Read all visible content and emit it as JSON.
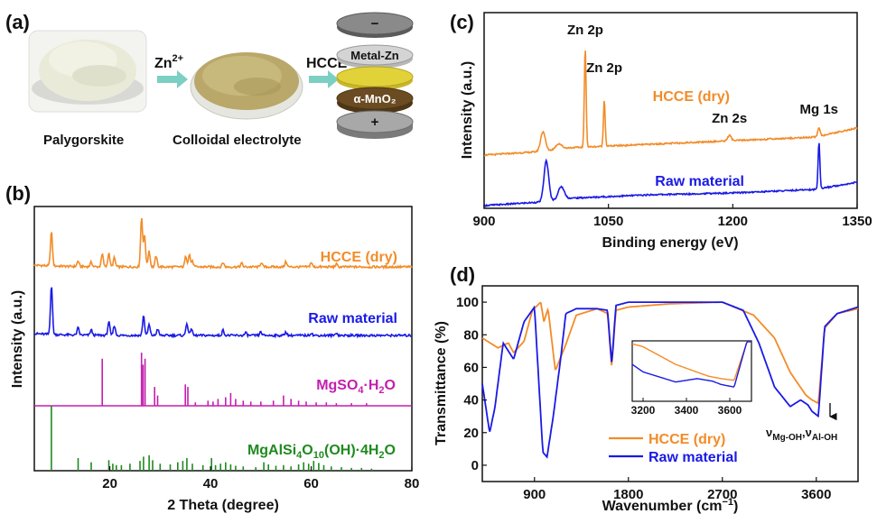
{
  "panel_a": {
    "label": "(a)",
    "reagent_1": "Zn",
    "reagent_1_sup": "2+",
    "reagent_2": "HCCE",
    "caption_left": "Palygorskite",
    "caption_right": "Colloidal electrolyte",
    "cell_layers": [
      "−",
      "Metal-Zn",
      "",
      "α-MnO₂",
      "+"
    ],
    "colors": {
      "powder": "#e9ead8",
      "gel": "#b9a86a",
      "separator": "#e2d23a",
      "cathode": "#6b4c22",
      "can": "#9a9a9a",
      "arrow": "#7ccfc3"
    }
  },
  "chart_data": [
    {
      "panel": "(b)",
      "type": "line",
      "xlabel": "2 Theta (degree)",
      "ylabel": "Intensity (a.u.)",
      "xlim": [
        5,
        80
      ],
      "xticks": [
        20,
        40,
        60,
        80
      ],
      "grid": false,
      "series": [
        {
          "name": "HCCE (dry)",
          "color": "#f28c28",
          "peaks": [
            [
              8.4,
              38
            ],
            [
              13.7,
              6
            ],
            [
              16.3,
              5
            ],
            [
              18.5,
              14
            ],
            [
              19.8,
              15
            ],
            [
              20.9,
              10
            ],
            [
              26.3,
              55
            ],
            [
              26.9,
              35
            ],
            [
              27.8,
              18
            ],
            [
              29.2,
              12
            ],
            [
              35.1,
              12
            ],
            [
              35.8,
              14
            ],
            [
              36.4,
              6
            ],
            [
              42.5,
              5
            ],
            [
              46.2,
              4
            ],
            [
              50.1,
              5
            ],
            [
              55.0,
              6
            ],
            [
              60.0,
              5
            ],
            [
              65.0,
              3
            ]
          ]
        },
        {
          "name": "Raw material",
          "color": "#1a1ae6",
          "peaks": [
            [
              8.4,
              55
            ],
            [
              13.7,
              8
            ],
            [
              16.3,
              6
            ],
            [
              19.8,
              15
            ],
            [
              20.9,
              11
            ],
            [
              26.7,
              22
            ],
            [
              27.8,
              12
            ],
            [
              29.5,
              7
            ],
            [
              35.3,
              14
            ],
            [
              36.2,
              8
            ],
            [
              42.5,
              6
            ],
            [
              47.0,
              3
            ],
            [
              50.0,
              4
            ],
            [
              55.0,
              4
            ],
            [
              60.0,
              3
            ],
            [
              65.0,
              3
            ]
          ]
        }
      ],
      "references": [
        {
          "name": "MgSO4·H2O",
          "color": "#c41fae",
          "sticks": [
            [
              18.5,
              55
            ],
            [
              26.3,
              62
            ],
            [
              26.6,
              48
            ],
            [
              27.0,
              55
            ],
            [
              28.9,
              22
            ],
            [
              29.5,
              12
            ],
            [
              35.0,
              25
            ],
            [
              35.5,
              22
            ],
            [
              37.0,
              4
            ],
            [
              39.5,
              6
            ],
            [
              40.5,
              5
            ],
            [
              41.5,
              8
            ],
            [
              43.0,
              10
            ],
            [
              44.0,
              15
            ],
            [
              45.0,
              8
            ],
            [
              46.5,
              6
            ],
            [
              48.0,
              5
            ],
            [
              50.0,
              5
            ],
            [
              52.5,
              6
            ],
            [
              54.5,
              12
            ],
            [
              56.0,
              8
            ],
            [
              57.5,
              6
            ],
            [
              59.0,
              5
            ],
            [
              61.0,
              4
            ],
            [
              63.0,
              4
            ],
            [
              65.0,
              3
            ],
            [
              68.0,
              3
            ],
            [
              71.0,
              3
            ]
          ]
        },
        {
          "name": "MgAlSi4O10(OH)·4H2O",
          "color": "#1f8a1f",
          "sticks": [
            [
              8.4,
              92
            ],
            [
              13.7,
              18
            ],
            [
              16.3,
              12
            ],
            [
              19.8,
              15
            ],
            [
              20.6,
              10
            ],
            [
              21.3,
              8
            ],
            [
              22.3,
              8
            ],
            [
              24.0,
              10
            ],
            [
              26.0,
              14
            ],
            [
              26.7,
              20
            ],
            [
              27.8,
              22
            ],
            [
              28.5,
              15
            ],
            [
              30.0,
              10
            ],
            [
              32.0,
              9
            ],
            [
              33.5,
              12
            ],
            [
              34.5,
              14
            ],
            [
              35.3,
              18
            ],
            [
              36.4,
              10
            ],
            [
              38.5,
              8
            ],
            [
              40.2,
              18
            ],
            [
              41.0,
              8
            ],
            [
              42.0,
              10
            ],
            [
              43.0,
              12
            ],
            [
              44.0,
              9
            ],
            [
              45.0,
              7
            ],
            [
              46.5,
              6
            ],
            [
              49.0,
              5
            ],
            [
              50.6,
              12
            ],
            [
              51.5,
              9
            ],
            [
              53.0,
              7
            ],
            [
              54.5,
              8
            ],
            [
              56.0,
              6
            ],
            [
              57.5,
              9
            ],
            [
              58.5,
              12
            ],
            [
              59.5,
              10
            ],
            [
              60.5,
              14
            ],
            [
              61.5,
              11
            ],
            [
              62.5,
              8
            ],
            [
              64.0,
              6
            ],
            [
              66.0,
              5
            ],
            [
              68.0,
              4
            ],
            [
              70.0,
              4
            ],
            [
              72.0,
              3
            ]
          ]
        }
      ]
    },
    {
      "panel": "(c)",
      "type": "line",
      "xlabel": "Binding energy (eV)",
      "ylabel": "Intensity (a.u.)",
      "xlim": [
        900,
        1350
      ],
      "xticks": [
        900,
        1050,
        1200,
        1350
      ],
      "grid": false,
      "annotations": [
        {
          "text": "Zn 2p",
          "x": 1022
        },
        {
          "text": "Zn 2p",
          "x": 1045
        },
        {
          "text": "Zn 2s",
          "x": 1196
        },
        {
          "text": "Mg 1s",
          "x": 1304
        }
      ],
      "series": [
        {
          "name": "HCCE (dry)",
          "color": "#f28c28",
          "baseline": [
            [
              900,
              0
            ],
            [
              970,
              4
            ],
            [
              1000,
              8
            ],
            [
              1100,
              12
            ],
            [
              1200,
              16
            ],
            [
              1300,
              20
            ],
            [
              1350,
              30
            ]
          ],
          "peaks": [
            [
              971,
              22,
              4
            ],
            [
              990,
              6,
              5
            ],
            [
              1022,
              110,
              1.5
            ],
            [
              1045,
              52,
              1.5
            ],
            [
              1196,
              6,
              3
            ],
            [
              1304,
              10,
              2
            ]
          ]
        },
        {
          "name": "Raw material",
          "color": "#1a1ae6",
          "baseline": [
            [
              900,
              0
            ],
            [
              970,
              4
            ],
            [
              1000,
              8
            ],
            [
              1100,
              12
            ],
            [
              1200,
              14
            ],
            [
              1300,
              18
            ],
            [
              1350,
              26
            ]
          ],
          "peaks": [
            [
              975,
              45,
              4
            ],
            [
              993,
              14,
              5
            ],
            [
              1304,
              52,
              1.5
            ]
          ]
        }
      ]
    },
    {
      "panel": "(d)",
      "type": "line",
      "xlabel": "Wavenumber (cm⁻¹)",
      "ylabel": "Transmittance (%)",
      "xlim": [
        400,
        4000
      ],
      "ylim": [
        -10,
        110
      ],
      "xticks": [
        900,
        1800,
        2700,
        3600
      ],
      "yticks": [
        0,
        20,
        40,
        60,
        80,
        100
      ],
      "grid": false,
      "legend": "bottom-right",
      "annotation": "νMg-OH, νAl-OH",
      "inset_xticks": [
        3200,
        3400,
        3600
      ],
      "series": [
        {
          "name": "HCCE (dry)",
          "color": "#f28c28",
          "points": [
            [
              400,
              78
            ],
            [
              550,
              72
            ],
            [
              650,
              75
            ],
            [
              700,
              69
            ],
            [
              800,
              76
            ],
            [
              880,
              95
            ],
            [
              960,
              100
            ],
            [
              990,
              88
            ],
            [
              1030,
              96
            ],
            [
              1100,
              58
            ],
            [
              1200,
              74
            ],
            [
              1300,
              92
            ],
            [
              1500,
              96
            ],
            [
              1600,
              93
            ],
            [
              1640,
              60
            ],
            [
              1680,
              95
            ],
            [
              1800,
              97
            ],
            [
              2200,
              99
            ],
            [
              2700,
              100
            ],
            [
              3000,
              92
            ],
            [
              3200,
              78
            ],
            [
              3350,
              57
            ],
            [
              3500,
              43
            ],
            [
              3560,
              40
            ],
            [
              3620,
              38
            ],
            [
              3680,
              84
            ],
            [
              3800,
              93
            ],
            [
              4000,
              96
            ]
          ]
        },
        {
          "name": "Raw material",
          "color": "#1a1ae6",
          "points": [
            [
              400,
              50
            ],
            [
              470,
              20
            ],
            [
              520,
              35
            ],
            [
              600,
              75
            ],
            [
              700,
              65
            ],
            [
              800,
              88
            ],
            [
              900,
              97
            ],
            [
              980,
              8
            ],
            [
              1020,
              5
            ],
            [
              1080,
              30
            ],
            [
              1150,
              65
            ],
            [
              1200,
              93
            ],
            [
              1300,
              96
            ],
            [
              1500,
              96
            ],
            [
              1600,
              95
            ],
            [
              1640,
              62
            ],
            [
              1680,
              98
            ],
            [
              1800,
              100
            ],
            [
              2200,
              100
            ],
            [
              2700,
              100
            ],
            [
              2900,
              95
            ],
            [
              3050,
              75
            ],
            [
              3200,
              48
            ],
            [
              3350,
              36
            ],
            [
              3450,
              40
            ],
            [
              3520,
              37
            ],
            [
              3560,
              33
            ],
            [
              3620,
              30
            ],
            [
              3680,
              85
            ],
            [
              3800,
              93
            ],
            [
              4000,
              97
            ]
          ]
        }
      ]
    }
  ]
}
